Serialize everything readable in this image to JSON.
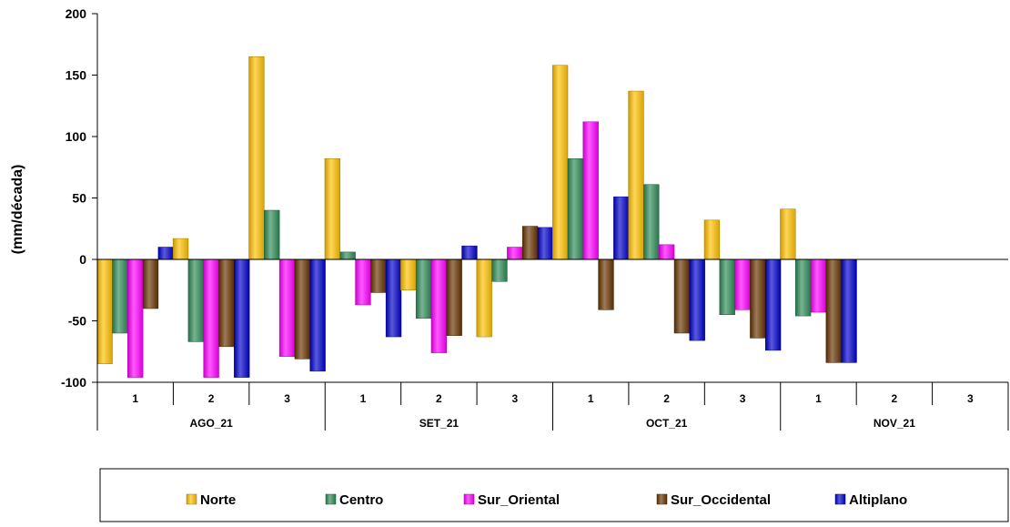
{
  "chart_data": {
    "type": "bar",
    "title": "",
    "ylabel": "(mm/década)",
    "ylim": [
      -100,
      200
    ],
    "yticks": [
      -100,
      -50,
      0,
      50,
      100,
      150,
      200
    ],
    "grid": false,
    "legend_position": "bottom",
    "groups": [
      {
        "label": "AGO_21",
        "subcategories": [
          "1",
          "2",
          "3"
        ]
      },
      {
        "label": "SET_21",
        "subcategories": [
          "1",
          "2",
          "3"
        ]
      },
      {
        "label": "OCT_21",
        "subcategories": [
          "1",
          "2",
          "3"
        ]
      },
      {
        "label": "NOV_21",
        "subcategories": [
          "1",
          "2",
          "3"
        ]
      }
    ],
    "series": [
      {
        "name": "Norte",
        "color": "#FFC000",
        "values": [
          -85,
          17,
          165,
          82,
          -25,
          -63,
          158,
          137,
          32,
          41,
          0,
          0
        ]
      },
      {
        "name": "Centro",
        "color": "#2E8B57",
        "values": [
          -60,
          -67,
          40,
          6,
          -48,
          -18,
          82,
          61,
          -45,
          -46,
          0,
          0
        ]
      },
      {
        "name": "Sur_Oriental",
        "color": "#FF00FF",
        "values": [
          -96,
          -96,
          -79,
          -37,
          -76,
          10,
          112,
          12,
          -41,
          -43,
          0,
          0
        ]
      },
      {
        "name": "Sur_Occidental",
        "color": "#663300",
        "values": [
          -40,
          -71,
          -81,
          -27,
          -62,
          27,
          -41,
          -60,
          -64,
          -84,
          0,
          0
        ]
      },
      {
        "name": "Altiplano",
        "color": "#0000CC",
        "values": [
          10,
          -96,
          -91,
          -63,
          11,
          26,
          51,
          -66,
          -74,
          -84,
          0,
          0
        ]
      }
    ]
  }
}
